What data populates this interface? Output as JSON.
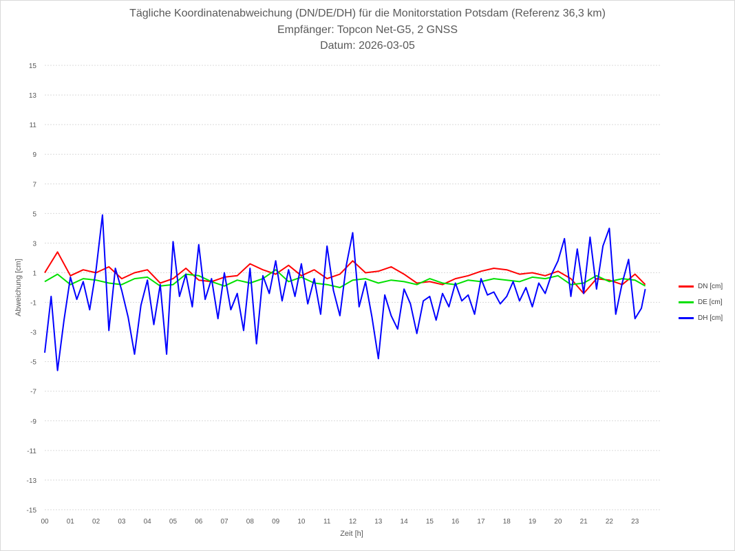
{
  "chart_data": {
    "type": "line",
    "title_lines": [
      "Tägliche Koordinatenabweichung (DN/DE/DH) für die Monitorstation Potsdam (Referenz 36,3 km)",
      "Empfänger: Topcon Net-G5, 2 GNSS",
      "Datum: 2026-03-05"
    ],
    "xlabel": "Zeit [h]",
    "ylabel": "Abweichung [cm]",
    "xlim": [
      0,
      24
    ],
    "ylim": [
      -15,
      15
    ],
    "yticks": [
      15,
      13,
      11,
      9,
      7,
      5,
      3,
      1,
      -1,
      -3,
      -5,
      -7,
      -9,
      -11,
      -13,
      -15
    ],
    "ytick_labels": [
      "15",
      "13",
      "11",
      "9",
      "7",
      "5",
      "3",
      "1",
      "-1",
      "-3",
      "-5",
      "-7",
      "-9",
      "-11",
      "-13",
      "-15"
    ],
    "xtick_labels": [
      "00",
      "01",
      "02",
      "03",
      "04",
      "05",
      "06",
      "07",
      "08",
      "09",
      "10",
      "11",
      "12",
      "13",
      "14",
      "15",
      "16",
      "17",
      "18",
      "19",
      "20",
      "21",
      "22",
      "23"
    ],
    "grid": true,
    "legend_position": "right",
    "series": [
      {
        "name": "DN [cm]",
        "color": "#ff0000",
        "x": [
          0,
          0.5,
          1,
          1.5,
          2,
          2.5,
          3,
          3.5,
          4,
          4.5,
          5,
          5.5,
          6,
          6.5,
          7,
          7.5,
          8,
          8.5,
          9,
          9.5,
          10,
          10.5,
          11,
          11.5,
          12,
          12.5,
          13,
          13.5,
          14,
          14.5,
          15,
          15.5,
          16,
          16.5,
          17,
          17.5,
          18,
          18.5,
          19,
          19.5,
          20,
          20.5,
          21,
          21.5,
          22,
          22.5,
          23,
          23.4
        ],
        "values": [
          1.0,
          2.4,
          0.8,
          1.2,
          1.0,
          1.4,
          0.6,
          1.0,
          1.2,
          0.3,
          0.6,
          1.3,
          0.5,
          0.4,
          0.7,
          0.8,
          1.6,
          1.2,
          0.9,
          1.5,
          0.8,
          1.2,
          0.6,
          0.9,
          1.8,
          1.0,
          1.1,
          1.4,
          0.9,
          0.3,
          0.4,
          0.2,
          0.6,
          0.8,
          1.1,
          1.3,
          1.2,
          0.9,
          1.0,
          0.8,
          1.1,
          0.6,
          -0.4,
          0.6,
          0.5,
          0.2,
          0.9,
          0.2
        ]
      },
      {
        "name": "DE [cm]",
        "color": "#00e000",
        "x": [
          0,
          0.5,
          1,
          1.5,
          2,
          2.5,
          3,
          3.5,
          4,
          4.5,
          5,
          5.5,
          6,
          6.5,
          7,
          7.5,
          8,
          8.5,
          9,
          9.5,
          10,
          10.5,
          11,
          11.5,
          12,
          12.5,
          13,
          13.5,
          14,
          14.5,
          15,
          15.5,
          16,
          16.5,
          17,
          17.5,
          18,
          18.5,
          19,
          19.5,
          20,
          20.5,
          21,
          21.5,
          22,
          22.5,
          23,
          23.4
        ],
        "values": [
          0.4,
          0.9,
          0.2,
          0.6,
          0.5,
          0.3,
          0.2,
          0.6,
          0.7,
          0.1,
          0.2,
          0.9,
          0.8,
          0.4,
          0.1,
          0.5,
          0.3,
          0.6,
          1.2,
          0.4,
          0.7,
          0.3,
          0.2,
          0.0,
          0.5,
          0.6,
          0.3,
          0.5,
          0.4,
          0.2,
          0.6,
          0.3,
          0.2,
          0.5,
          0.4,
          0.6,
          0.5,
          0.4,
          0.7,
          0.6,
          0.8,
          0.2,
          0.3,
          0.8,
          0.4,
          0.6,
          0.5,
          0.1
        ]
      },
      {
        "name": "DH [cm]",
        "color": "#0000ff",
        "x": [
          0,
          0.25,
          0.5,
          0.75,
          1,
          1.25,
          1.5,
          1.75,
          2,
          2.25,
          2.5,
          2.75,
          3,
          3.25,
          3.5,
          3.75,
          4,
          4.25,
          4.5,
          4.75,
          5,
          5.25,
          5.5,
          5.75,
          6,
          6.25,
          6.5,
          6.75,
          7,
          7.25,
          7.5,
          7.75,
          8,
          8.25,
          8.5,
          8.75,
          9,
          9.25,
          9.5,
          9.75,
          10,
          10.25,
          10.5,
          10.75,
          11,
          11.25,
          11.5,
          11.75,
          12,
          12.25,
          12.5,
          12.75,
          13,
          13.25,
          13.5,
          13.75,
          14,
          14.25,
          14.5,
          14.75,
          15,
          15.25,
          15.5,
          15.75,
          16,
          16.25,
          16.5,
          16.75,
          17,
          17.25,
          17.5,
          17.75,
          18,
          18.25,
          18.5,
          18.75,
          19,
          19.25,
          19.5,
          19.75,
          20,
          20.25,
          20.5,
          20.75,
          21,
          21.25,
          21.5,
          21.75,
          22,
          22.25,
          22.5,
          22.75,
          23,
          23.25,
          23.4
        ],
        "values": [
          -4.4,
          -0.6,
          -5.6,
          -2.2,
          0.7,
          -0.8,
          0.4,
          -1.5,
          1.2,
          4.9,
          -2.9,
          1.3,
          -0.2,
          -2.0,
          -4.5,
          -1.2,
          0.5,
          -2.5,
          0.2,
          -4.5,
          3.1,
          -0.6,
          0.9,
          -1.3,
          2.9,
          -0.8,
          0.6,
          -2.1,
          1.0,
          -1.5,
          -0.4,
          -2.9,
          1.3,
          -3.8,
          0.8,
          -0.4,
          1.8,
          -0.9,
          1.2,
          -0.6,
          1.6,
          -1.1,
          0.6,
          -1.8,
          2.8,
          -0.2,
          -1.9,
          1.5,
          3.7,
          -1.3,
          0.4,
          -2.0,
          -4.8,
          -0.5,
          -1.9,
          -2.8,
          -0.1,
          -1.1,
          -3.1,
          -0.9,
          -0.6,
          -2.2,
          -0.4,
          -1.3,
          0.3,
          -0.9,
          -0.5,
          -1.8,
          0.6,
          -0.5,
          -0.3,
          -1.1,
          -0.6,
          0.4,
          -0.9,
          0.0,
          -1.3,
          0.3,
          -0.4,
          0.9,
          1.8,
          3.3,
          -0.6,
          2.6,
          -0.4,
          3.4,
          -0.1,
          2.8,
          4.0,
          -1.8,
          0.3,
          1.9,
          -2.1,
          -1.4,
          -0.1
        ]
      }
    ]
  }
}
